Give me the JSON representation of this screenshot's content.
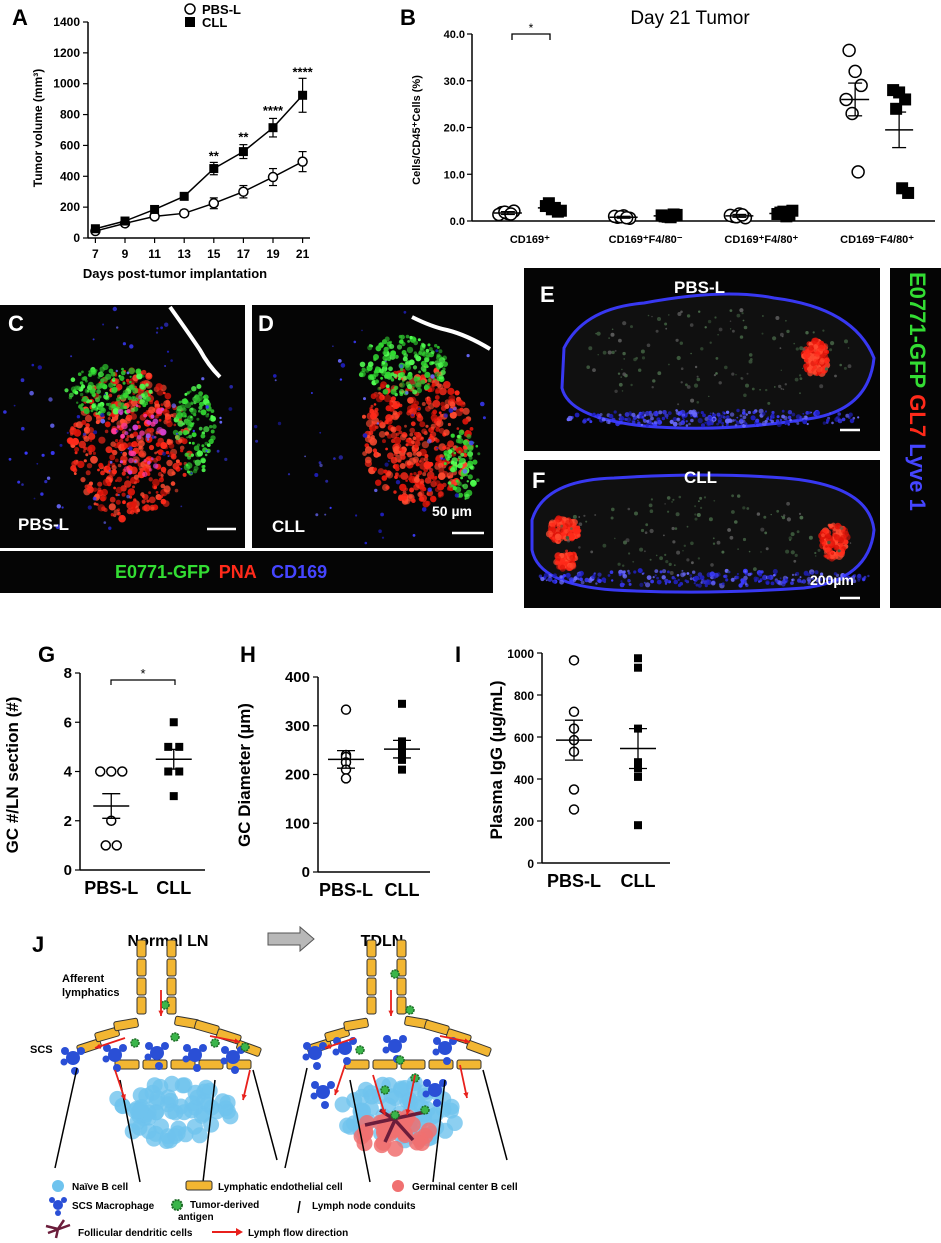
{
  "panel_labels": {
    "A": "A",
    "B": "B",
    "C": "C",
    "D": "D",
    "E": "E",
    "F": "F",
    "G": "G",
    "H": "H",
    "I": "I",
    "J": "J"
  },
  "colors": {
    "pbs_marker": "#000000",
    "cll_marker": "#000000",
    "gfp_green": "#33dd33",
    "pna_red": "#ff2a1a",
    "cd169_blue": "#3b3bff",
    "lymphatic_orange": "#f2b632",
    "naive_b": "#6fc3ee",
    "gc_b": "#f07070",
    "macrophage": "#2a4fd6",
    "antigen": "#3ab54a",
    "fdc": "#6b1d3b",
    "flow_arrow": "#e8201c"
  },
  "chart_data": [
    {
      "id": "A",
      "type": "line",
      "xlabel": "Days post-tumor implantation",
      "ylabel": "Tumor volume (mm³)",
      "x": [
        7,
        9,
        11,
        13,
        15,
        17,
        19,
        21
      ],
      "xlim": [
        6.5,
        21.5
      ],
      "ylim": [
        0,
        1400
      ],
      "yticks": [
        0,
        200,
        400,
        600,
        800,
        1000,
        1200,
        1400
      ],
      "legend_position": "top-left",
      "series": [
        {
          "name": "PBS-L",
          "marker": "open-circle",
          "values": [
            45,
            95,
            140,
            160,
            225,
            300,
            395,
            495
          ],
          "err": [
            15,
            15,
            20,
            20,
            35,
            40,
            55,
            65
          ]
        },
        {
          "name": "CLL",
          "marker": "filled-square",
          "values": [
            60,
            110,
            185,
            270,
            450,
            560,
            715,
            925
          ],
          "err": [
            10,
            15,
            15,
            20,
            40,
            45,
            60,
            110
          ]
        }
      ],
      "significance": [
        {
          "x": 15,
          "label": "**",
          "y": 515
        },
        {
          "x": 17,
          "label": "**",
          "y": 640
        },
        {
          "x": 19,
          "label": "****",
          "y": 810
        },
        {
          "x": 21,
          "label": "****",
          "y": 1060
        }
      ]
    },
    {
      "id": "B",
      "type": "scatter",
      "title": "Day 21 Tumor",
      "ylabel": "Cells/CD45⁺Cells (%)",
      "ylim": [
        0,
        40
      ],
      "yticks": [
        "0.0",
        "10.0",
        "20.0",
        "30.0",
        "40.0"
      ],
      "categories": [
        "CD169⁺",
        "CD169⁺F4/80⁻",
        "CD169⁺F4/80⁺",
        "CD169⁻F4/80⁺"
      ],
      "series": [
        {
          "name": "PBS-L",
          "marker": "open-circle",
          "points": [
            [
              1.8,
              1.6,
              2.1,
              1.4,
              1.9,
              1.5
            ],
            [
              0.8,
              1.1,
              0.6,
              1.0,
              0.9,
              0.7
            ],
            [
              1.0,
              1.5,
              0.7,
              1.2,
              0.9,
              1.3
            ],
            [
              36.5,
              32,
              29,
              26,
              23,
              10.5
            ]
          ],
          "mean": [
            1.7,
            0.8,
            1.1,
            26
          ],
          "sem": [
            0.3,
            0.2,
            0.3,
            3.5
          ]
        },
        {
          "name": "CLL",
          "marker": "filled-square",
          "points": [
            [
              3.2,
              2.5,
              2.0,
              3.8,
              2.8,
              2.2
            ],
            [
              1.2,
              0.9,
              1.4,
              1.0,
              0.8,
              1.3
            ],
            [
              1.5,
              2.0,
              1.2,
              1.8,
              1.0,
              2.2
            ],
            [
              28,
              27.5,
              26,
              24,
              7,
              6
            ]
          ],
          "mean": [
            2.8,
            1.1,
            1.6,
            19.5
          ],
          "sem": [
            0.4,
            0.2,
            0.3,
            3.8
          ]
        }
      ],
      "significance": [
        {
          "category": 0,
          "label": "*"
        }
      ]
    },
    {
      "id": "G",
      "type": "scatter",
      "ylabel": "GC #/LN section (#)",
      "ylim": [
        0,
        8
      ],
      "yticks": [
        0,
        2,
        4,
        6,
        8
      ],
      "categories": [
        "PBS-L",
        "CLL"
      ],
      "series": [
        {
          "name": "PBS-L",
          "marker": "open-circle",
          "points": [
            4,
            4,
            4,
            2,
            1,
            1
          ],
          "mean": 2.6,
          "sem": 0.5
        },
        {
          "name": "CLL",
          "marker": "filled-square",
          "points": [
            6,
            5,
            5,
            4,
            4,
            3
          ],
          "mean": 4.5,
          "sem": 0.4
        }
      ],
      "significance": [
        {
          "label": "*"
        }
      ]
    },
    {
      "id": "H",
      "type": "scatter",
      "ylabel": "GC Diameter (µm)",
      "ylim": [
        0,
        400
      ],
      "yticks": [
        0,
        100,
        200,
        300,
        400
      ],
      "categories": [
        "PBS-L",
        "CLL"
      ],
      "series": [
        {
          "name": "PBS-L",
          "marker": "open-circle",
          "points": [
            333,
            240,
            236,
            225,
            210,
            192
          ],
          "mean": 231,
          "sem": 18
        },
        {
          "name": "CLL",
          "marker": "filled-square",
          "points": [
            345,
            268,
            255,
            245,
            230,
            210
          ],
          "mean": 252,
          "sem": 18
        }
      ]
    },
    {
      "id": "I",
      "type": "scatter",
      "ylabel": "Plasma IgG (µg/mL)",
      "ylim": [
        0,
        1000
      ],
      "yticks": [
        0,
        200,
        400,
        600,
        800,
        1000
      ],
      "categories": [
        "PBS-L",
        "CLL"
      ],
      "series": [
        {
          "name": "PBS-L",
          "marker": "open-circle",
          "points": [
            965,
            720,
            640,
            585,
            530,
            350,
            255
          ],
          "mean": 585,
          "sem": 95
        },
        {
          "name": "CLL",
          "marker": "filled-square",
          "points": [
            975,
            930,
            640,
            480,
            450,
            410,
            180
          ],
          "mean": 545,
          "sem": 95
        }
      ]
    }
  ],
  "micrographs": {
    "C": {
      "group_label": "PBS-L"
    },
    "D": {
      "group_label": "CLL",
      "scale_bar": "50 µm"
    },
    "E": {
      "group_label": "PBS-L"
    },
    "F": {
      "group_label": "CLL",
      "scale_bar": "200µm"
    },
    "cd_legend": [
      "E0771-GFP",
      "PNA",
      "CD169"
    ],
    "ef_legend": [
      "E0771-GFP",
      "GL7",
      "Lyve 1"
    ]
  },
  "diagram": {
    "left_title": "Normal LN",
    "right_title": "TDLN",
    "afferent_label": "Afferent lymphatics",
    "scs_label": "SCS",
    "legend": [
      {
        "key": "naive",
        "label": "Naïve B cell"
      },
      {
        "key": "lec",
        "label": "Lymphatic endothelial cell"
      },
      {
        "key": "gcb",
        "label": "Germinal center B cell"
      },
      {
        "key": "mac",
        "label": "SCS Macrophage"
      },
      {
        "key": "antigen",
        "label": "Tumor-derived antigen"
      },
      {
        "key": "conduit",
        "label": "Lymph node conduits"
      },
      {
        "key": "fdc",
        "label": "Follicular dendritic cells"
      },
      {
        "key": "flow",
        "label": "Lymph flow direction"
      }
    ]
  }
}
